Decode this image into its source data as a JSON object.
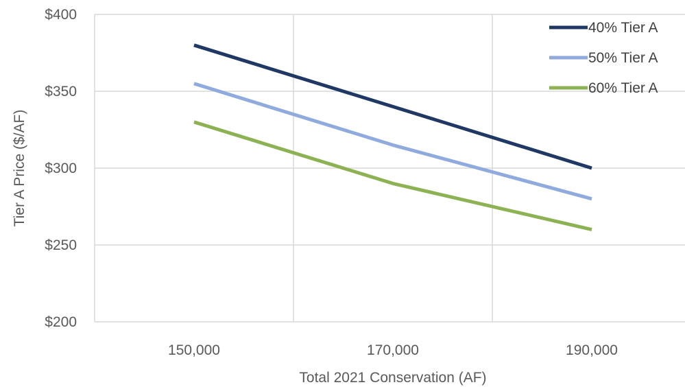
{
  "chart_data": {
    "type": "line",
    "title": "",
    "xlabel": "Total 2021 Conservation (AF)",
    "ylabel": "Tier A Price ($/AF)",
    "x": [
      150000,
      170000,
      190000
    ],
    "x_tick_values": [
      150000,
      170000,
      190000
    ],
    "x_tick_labels": [
      "150,000",
      "170,000",
      "190,000"
    ],
    "xlim": [
      140000,
      200000
    ],
    "x_gridlines": [
      160000,
      180000,
      200000
    ],
    "ylim": [
      200,
      400
    ],
    "y_ticks": [
      200,
      250,
      300,
      350,
      400
    ],
    "y_tick_labels": [
      "$200",
      "$250",
      "$300",
      "$350",
      "$400"
    ],
    "grid": true,
    "legend_position": "top-right",
    "series": [
      {
        "name": "40% Tier A",
        "values": [
          380,
          340,
          300
        ],
        "color": "#1f3864"
      },
      {
        "name": "50% Tier A",
        "values": [
          355,
          315,
          280
        ],
        "color": "#8faadc"
      },
      {
        "name": "60% Tier A",
        "values": [
          330,
          290,
          260
        ],
        "color": "#8db254"
      }
    ],
    "gridline_color": "#d9d9d9"
  }
}
